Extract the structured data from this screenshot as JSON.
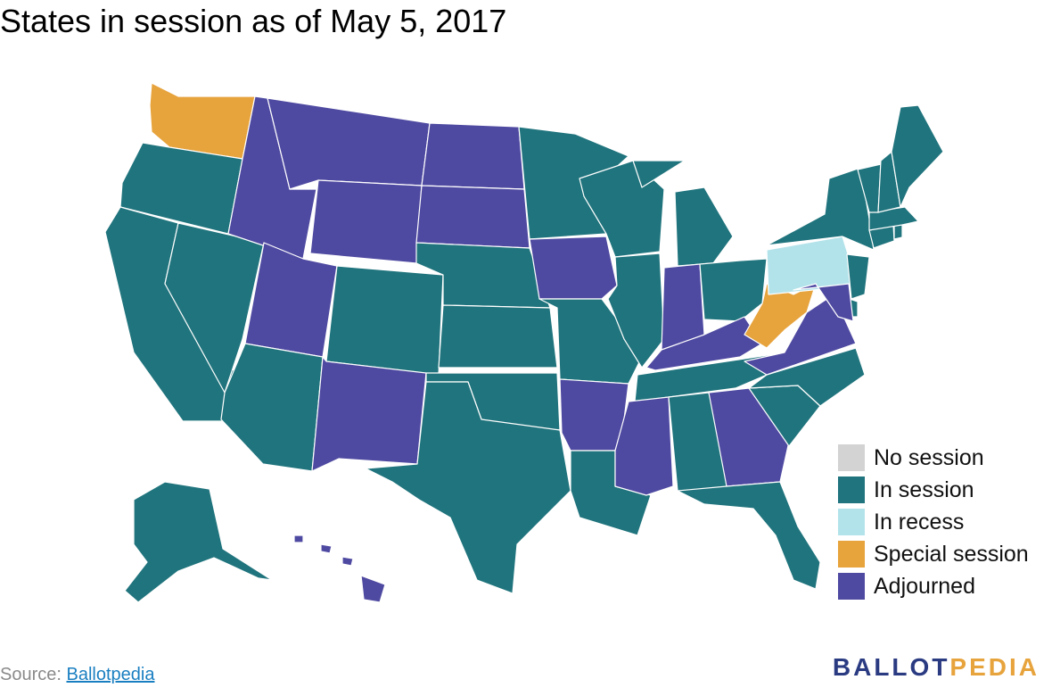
{
  "title": "States in session as of May 5, 2017",
  "colors": {
    "no_session": "#d3d3d3",
    "in_session": "#20747d",
    "in_recess": "#b3e3ea",
    "special_session": "#e7a33c",
    "adjourned": "#4f4aa1",
    "border": "#ffffff"
  },
  "legend": [
    {
      "label": "No session",
      "status": "no_session"
    },
    {
      "label": "In session",
      "status": "in_session"
    },
    {
      "label": "In recess",
      "status": "in_recess"
    },
    {
      "label": "Special session",
      "status": "special_session"
    },
    {
      "label": "Adjourned",
      "status": "adjourned"
    }
  ],
  "states": {
    "WA": "special_session",
    "OR": "in_session",
    "CA": "in_session",
    "NV": "in_session",
    "ID": "adjourned",
    "MT": "adjourned",
    "WY": "adjourned",
    "UT": "adjourned",
    "AZ": "in_session",
    "CO": "in_session",
    "NM": "adjourned",
    "ND": "adjourned",
    "SD": "adjourned",
    "NE": "in_session",
    "KS": "in_session",
    "OK": "in_session",
    "TX": "in_session",
    "MN": "in_session",
    "IA": "adjourned",
    "MO": "in_session",
    "AR": "adjourned",
    "LA": "in_session",
    "WI": "in_session",
    "IL": "in_session",
    "MI": "in_session",
    "IN": "adjourned",
    "OH": "in_session",
    "KY": "adjourned",
    "TN": "in_session",
    "MS": "adjourned",
    "AL": "in_session",
    "GA": "adjourned",
    "FL": "in_session",
    "SC": "in_session",
    "NC": "in_session",
    "VA": "adjourned",
    "WV": "special_session",
    "PA": "in_recess",
    "NY": "in_session",
    "NJ": "in_session",
    "DE": "in_session",
    "MD": "adjourned",
    "CT": "in_session",
    "RI": "in_session",
    "MA": "in_session",
    "VT": "in_session",
    "NH": "in_session",
    "ME": "in_session",
    "AK": "in_session",
    "HI": "adjourned"
  },
  "source": {
    "prefix": "Source: ",
    "link_text": "Ballotpedia"
  },
  "brand": {
    "part1": "BALLOT",
    "part2": "PEDIA"
  }
}
